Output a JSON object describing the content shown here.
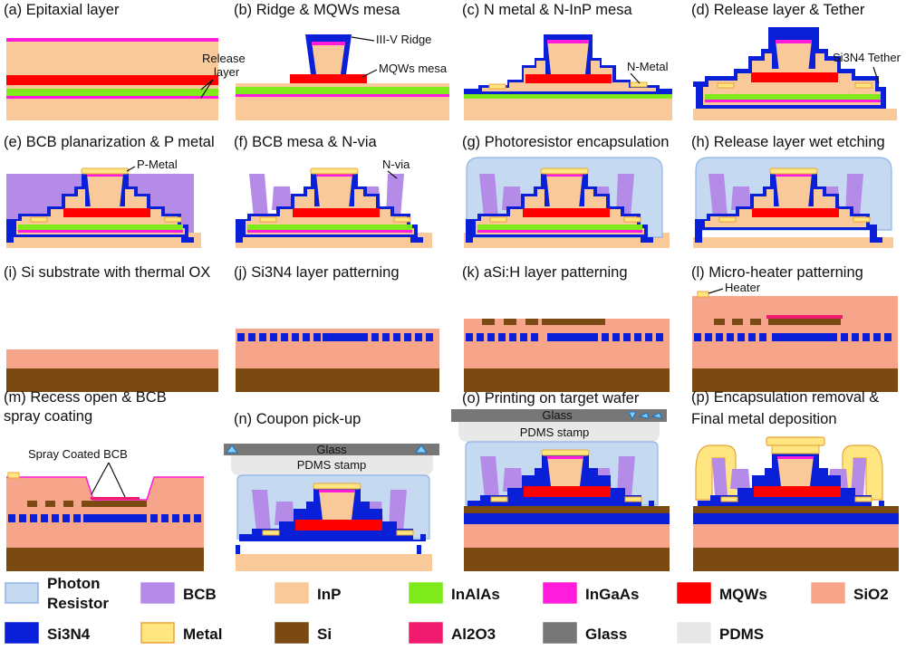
{
  "panels": [
    {
      "id": "a",
      "caption": "(a) Epitaxial layer"
    },
    {
      "id": "b",
      "caption": "(b) Ridge & MQWs mesa"
    },
    {
      "id": "c",
      "caption": "(c) N metal & N-InP mesa"
    },
    {
      "id": "d",
      "caption": "(d) Release layer & Tether"
    },
    {
      "id": "e",
      "caption": "(e) BCB planarization & P metal"
    },
    {
      "id": "f",
      "caption": "(f) BCB mesa & N-via"
    },
    {
      "id": "g",
      "caption": "(g) Photoresistor encapsulation"
    },
    {
      "id": "h",
      "caption": "(h) Release layer wet etching"
    },
    {
      "id": "i",
      "caption": "(i) Si substrate with thermal OX"
    },
    {
      "id": "j",
      "caption": "(j) Si3N4 layer patterning"
    },
    {
      "id": "k",
      "caption": "(k) aSi:H layer patterning"
    },
    {
      "id": "l",
      "caption": "(l) Micro-heater patterning"
    },
    {
      "id": "m",
      "caption": "(m) Recess open & BCB",
      "caption2": "spray coating"
    },
    {
      "id": "n",
      "caption": "(n) Coupon pick-up"
    },
    {
      "id": "o",
      "caption": "(o) Printing on target wafer"
    },
    {
      "id": "p",
      "caption": "(p) Encapsulation removal &",
      "caption2": "Final metal deposition"
    }
  ],
  "annotations": {
    "release_layer": "Release",
    "release_layer2": "layer",
    "ridge": "III-V Ridge",
    "mqw_mesa": "MQWs mesa",
    "n_metal": "N-Metal",
    "tether": "Si3N4 Tether",
    "p_metal": "P-Metal",
    "n_via": "N-via",
    "heater": "Heater",
    "spray_bcb": "Spray Coated BCB",
    "glass_n": "Glass",
    "pdms_n": "PDMS stamp",
    "glass_o": "Glass",
    "pdms_o": "PDMS stamp"
  },
  "legend": [
    {
      "label": "Photon",
      "label2": "Resistor",
      "color": "#c5d9f1",
      "border": "#8fb3e6"
    },
    {
      "label": "BCB",
      "color": "#b48ce8",
      "border": "#b48ce8"
    },
    {
      "label": "InP",
      "color": "#f9c99a",
      "border": "#f9c99a"
    },
    {
      "label": "InAlAs",
      "color": "#7fea1a",
      "border": "#7fea1a"
    },
    {
      "label": "InGaAs",
      "color": "#ff1cdb",
      "border": "#ff1cdb"
    },
    {
      "label": "MQWs",
      "color": "#ff0000",
      "border": "#ff0000"
    },
    {
      "label": "SiO2",
      "color": "#f6a58a",
      "border": "#f6a58a"
    },
    {
      "label": "Si3N4",
      "color": "#0a1fd8",
      "border": "#0a1fd8"
    },
    {
      "label": "Metal",
      "color": "#ffe680",
      "border": "#e8a53a"
    },
    {
      "label": "Si",
      "color": "#7a4a12",
      "border": "#7a4a12"
    },
    {
      "label": "Al2O3",
      "color": "#f01a6e",
      "border": "#f01a6e"
    },
    {
      "label": "Glass",
      "color": "#777777",
      "border": "#777777"
    },
    {
      "label": "PDMS",
      "color": "#e8e8e8",
      "border": "#e8e8e8"
    }
  ]
}
